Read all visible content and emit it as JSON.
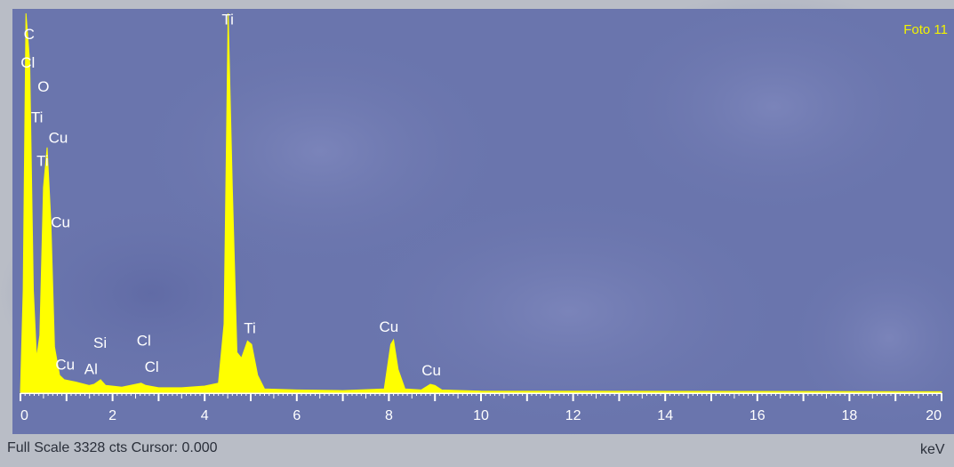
{
  "colors": {
    "background": "#6a75ad",
    "spectrum": "#ffff00",
    "axis": "#ffffff",
    "status_text": "#2a2f3a"
  },
  "status": {
    "full_scale_text": "Full Scale 3328 cts Cursor: 0.000",
    "unit": "keV"
  },
  "chart_data": {
    "type": "area",
    "title": "Foto 11",
    "xlabel": "keV",
    "ylabel": "",
    "xlim": [
      0,
      20
    ],
    "ylim": [
      0,
      3328
    ],
    "grid": false,
    "x_ticks": [
      0,
      2,
      4,
      6,
      8,
      10,
      12,
      14,
      16,
      18,
      20
    ],
    "x_tick_labels": [
      "0",
      "2",
      "4",
      "6",
      "8",
      "10",
      "12",
      "14",
      "16",
      "18",
      "20"
    ],
    "series": [
      {
        "color": "#ffff00",
        "points": [
          [
            0.0,
            0
          ],
          [
            0.06,
            900
          ],
          [
            0.12,
            3328
          ],
          [
            0.2,
            2900
          ],
          [
            0.28,
            900
          ],
          [
            0.35,
            300
          ],
          [
            0.42,
            500
          ],
          [
            0.5,
            1800
          ],
          [
            0.58,
            2150
          ],
          [
            0.66,
            1500
          ],
          [
            0.74,
            400
          ],
          [
            0.85,
            150
          ],
          [
            0.95,
            110
          ],
          [
            1.2,
            90
          ],
          [
            1.49,
            60
          ],
          [
            1.6,
            70
          ],
          [
            1.74,
            110
          ],
          [
            1.85,
            60
          ],
          [
            2.2,
            45
          ],
          [
            2.62,
            80
          ],
          [
            2.72,
            60
          ],
          [
            3.0,
            40
          ],
          [
            3.5,
            40
          ],
          [
            4.0,
            55
          ],
          [
            4.3,
            80
          ],
          [
            4.42,
            600
          ],
          [
            4.51,
            3328
          ],
          [
            4.6,
            1800
          ],
          [
            4.7,
            350
          ],
          [
            4.8,
            300
          ],
          [
            4.93,
            450
          ],
          [
            5.02,
            420
          ],
          [
            5.15,
            150
          ],
          [
            5.3,
            30
          ],
          [
            6.0,
            20
          ],
          [
            7.0,
            15
          ],
          [
            7.9,
            30
          ],
          [
            8.04,
            420
          ],
          [
            8.1,
            460
          ],
          [
            8.2,
            200
          ],
          [
            8.35,
            30
          ],
          [
            8.7,
            20
          ],
          [
            8.9,
            70
          ],
          [
            9.0,
            60
          ],
          [
            9.15,
            20
          ],
          [
            10.0,
            10
          ],
          [
            20.0,
            5
          ]
        ]
      }
    ],
    "annotations": [
      {
        "text": "C",
        "x": 0.19,
        "y": 3100
      },
      {
        "text": "Cl",
        "x": 0.16,
        "y": 2850
      },
      {
        "text": "O",
        "x": 0.5,
        "y": 2640
      },
      {
        "text": "Ti",
        "x": 0.36,
        "y": 2370
      },
      {
        "text": "Cu",
        "x": 0.82,
        "y": 2190
      },
      {
        "text": "Ti",
        "x": 0.48,
        "y": 1990
      },
      {
        "text": "Cu",
        "x": 0.87,
        "y": 1450
      },
      {
        "text": "Ti",
        "x": 4.5,
        "y": 3230
      },
      {
        "text": "Ti",
        "x": 4.98,
        "y": 520
      },
      {
        "text": "Si",
        "x": 1.73,
        "y": 390
      },
      {
        "text": "Cl",
        "x": 2.68,
        "y": 410
      },
      {
        "text": "Cu",
        "x": 0.97,
        "y": 200
      },
      {
        "text": "Al",
        "x": 1.53,
        "y": 160
      },
      {
        "text": "Cl",
        "x": 2.85,
        "y": 180
      },
      {
        "text": "Cu",
        "x": 8.0,
        "y": 530
      },
      {
        "text": "Cu",
        "x": 8.92,
        "y": 150
      }
    ]
  }
}
